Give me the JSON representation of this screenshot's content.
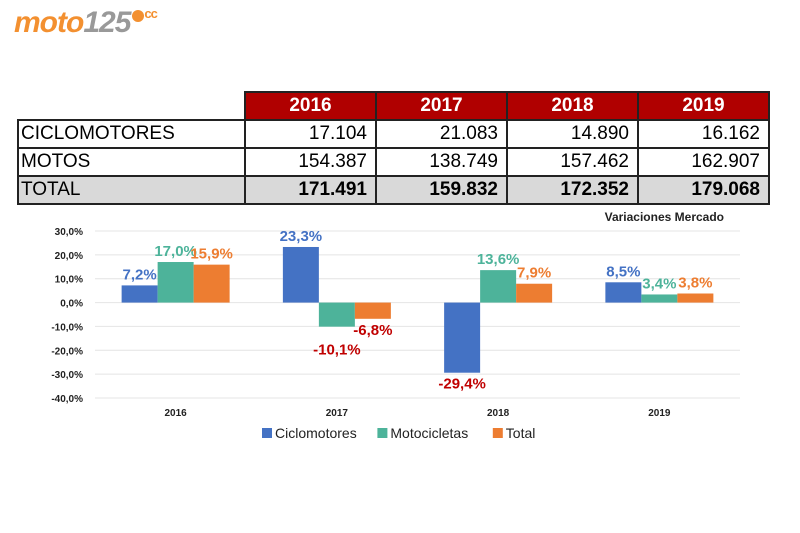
{
  "logo": {
    "text_a": "moto",
    "text_b": "125",
    "suffix": "cc"
  },
  "table": {
    "headers": [
      "2016",
      "2017",
      "2018",
      "2019"
    ],
    "rows": [
      {
        "label": "CICLOMOTORES",
        "values": [
          "17.104",
          "21.083",
          "14.890",
          "16.162"
        ]
      },
      {
        "label": "MOTOS",
        "values": [
          "154.387",
          "138.749",
          "157.462",
          "162.907"
        ]
      },
      {
        "label": "TOTAL",
        "values": [
          "171.491",
          "159.832",
          "172.352",
          "179.068"
        ]
      }
    ]
  },
  "chart_data": {
    "type": "bar",
    "title": "Variaciones Mercado",
    "categories": [
      "2016",
      "2017",
      "2018",
      "2019"
    ],
    "series": [
      {
        "name": "Ciclomotores",
        "color": "#4472c4",
        "values": [
          7.2,
          23.3,
          -29.4,
          8.5
        ],
        "labels": [
          "7,2%",
          "23,3%",
          "-29,4%",
          "8,5%"
        ]
      },
      {
        "name": "Motocicletas",
        "color": "#4db39a",
        "values": [
          17.0,
          -10.1,
          13.6,
          3.4
        ],
        "labels": [
          "17,0%",
          "-10,1%",
          "13,6%",
          "3,4%"
        ]
      },
      {
        "name": "Total",
        "color": "#ed7d31",
        "values": [
          15.9,
          -6.8,
          7.9,
          3.8
        ],
        "labels": [
          "15,9%",
          "-6,8%",
          "7,9%",
          "3,8%"
        ]
      }
    ],
    "negative_label_color": "#c00000",
    "ylim": [
      -40,
      30
    ],
    "yticks": [
      "-40,0%",
      "-30,0%",
      "-20,0%",
      "-10,0%",
      "0,0%",
      "10,0%",
      "20,0%",
      "30,0%"
    ],
    "grid": true,
    "legend": "bottom"
  }
}
